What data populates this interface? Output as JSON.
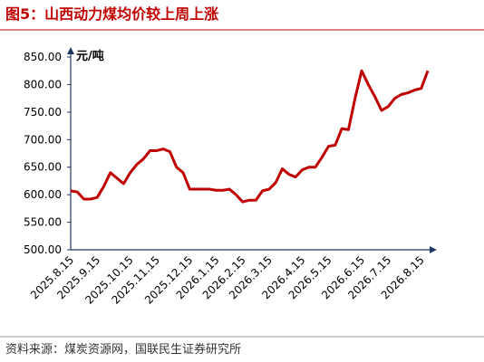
{
  "chart_data": {
    "type": "line",
    "title": "图5：山西动力煤均价较上周上涨",
    "unit": "元/吨",
    "source": "资料来源：煤炭资源网，国联民生证券研究所",
    "categories": [
      "2025.8.15",
      null,
      null,
      null,
      "2025.9.15",
      null,
      null,
      null,
      null,
      "2025.10.15",
      null,
      null,
      null,
      "2025.11.15",
      null,
      null,
      null,
      null,
      "2025.12.15",
      null,
      null,
      null,
      "2026.1.15",
      null,
      null,
      null,
      "2026.2.15",
      null,
      null,
      null,
      "2026.3.15",
      null,
      null,
      null,
      null,
      "2026.4.15",
      null,
      null,
      null,
      "2026.5.15",
      null,
      null,
      null,
      null,
      "2026.6.15",
      null,
      null,
      null,
      "2026.7.15",
      null,
      null,
      null,
      null,
      "2026.8.15",
      null
    ],
    "series": [
      {
        "name": "山西动力煤均价",
        "color": "#c00000",
        "values": [
          607,
          605,
          592,
          592,
          595,
          615,
          640,
          630,
          620,
          640,
          655,
          665,
          680,
          680,
          683,
          678,
          650,
          640,
          610,
          610,
          610,
          610,
          608,
          608,
          610,
          600,
          587,
          590,
          590,
          607,
          610,
          622,
          647,
          637,
          632,
          645,
          650,
          650,
          668,
          688,
          690,
          720,
          718,
          775,
          825,
          800,
          778,
          753,
          760,
          775,
          782,
          785,
          790,
          793,
          825
        ]
      }
    ],
    "ylim": [
      500,
      850
    ],
    "yticks": [
      {
        "value": 500,
        "label": "500.00"
      },
      {
        "value": 550,
        "label": "550.00"
      },
      {
        "value": 600,
        "label": "600.00"
      },
      {
        "value": 650,
        "label": "650.00"
      },
      {
        "value": 700,
        "label": "700.00"
      },
      {
        "value": 750,
        "label": "750.00"
      },
      {
        "value": 800,
        "label": "800.00"
      },
      {
        "value": 850,
        "label": "850.00"
      }
    ],
    "grid": false
  }
}
